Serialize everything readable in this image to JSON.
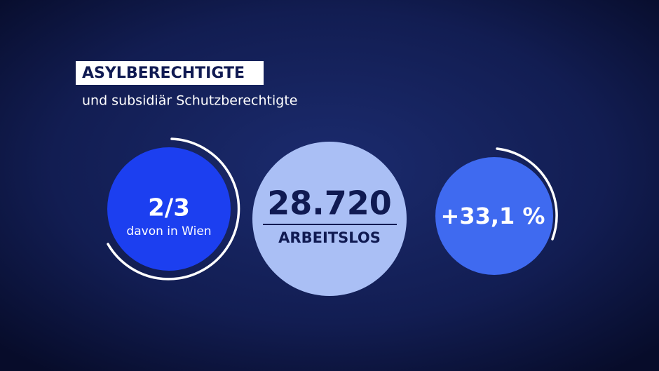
{
  "header": {
    "title": "ASYLBERECHTIGTE",
    "subtitle": "und subsidiär Schutzberechtigte"
  },
  "stats": [
    {
      "value": "2/3",
      "label": "davon in Wien"
    },
    {
      "value": "28.720",
      "label": "ARBEITSLOS"
    },
    {
      "value": "+33,1 %"
    }
  ]
}
